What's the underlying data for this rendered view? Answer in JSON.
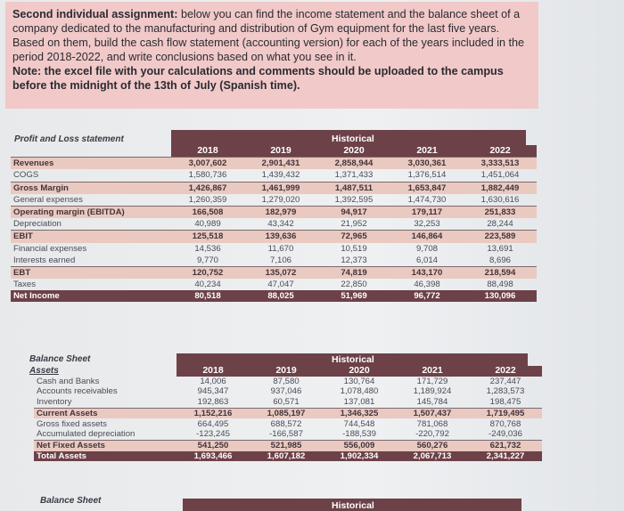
{
  "assignment": {
    "lead": "Second individual assignment:",
    "body": "below you can find the income statement and the balance sheet of a company dedicated to the manufacturing and distribution of Gym equipment for the last five years. Based on them, build the cash flow statement (accounting version) for each of the years included in the period 2018-2022, and write conclusions based on what you see in it.",
    "note": "Note: the excel file with your calculations and comments should be uploaded to the campus before the midnight of the 13th of July (Spanish time)."
  },
  "pl": {
    "title": "Profit and Loss statement",
    "group_header": "Historical",
    "years": [
      "2018",
      "2019",
      "2020",
      "2021",
      "2022"
    ],
    "rows": [
      {
        "label": "Revenues",
        "values": [
          "3,007,602",
          "2,901,431",
          "2,858,944",
          "3,030,361",
          "3,333,513"
        ],
        "style": "hl"
      },
      {
        "label": "COGS",
        "values": [
          "1,580,736",
          "1,439,432",
          "1,371,433",
          "1,376,514",
          "1,451,064"
        ],
        "style": ""
      },
      {
        "label": "Gross Margin",
        "values": [
          "1,426,867",
          "1,461,999",
          "1,487,511",
          "1,653,847",
          "1,882,449"
        ],
        "style": "hl"
      },
      {
        "label": "General expenses",
        "values": [
          "1,260,359",
          "1,279,020",
          "1,392,595",
          "1,474,730",
          "1,630,616"
        ],
        "style": ""
      },
      {
        "label": "Operating margin (EBITDA)",
        "values": [
          "166,508",
          "182,979",
          "94,917",
          "179,117",
          "251,833"
        ],
        "style": "hl"
      },
      {
        "label": "Depreciation",
        "values": [
          "40,989",
          "43,342",
          "21,952",
          "32,253",
          "28,244"
        ],
        "style": ""
      },
      {
        "label": "EBIT",
        "values": [
          "125,518",
          "139,636",
          "72,965",
          "146,864",
          "223,589"
        ],
        "style": "hl"
      },
      {
        "label": "Financial expenses",
        "values": [
          "14,536",
          "11,670",
          "10,519",
          "9,708",
          "13,691"
        ],
        "style": ""
      },
      {
        "label": "Interests earned",
        "values": [
          "9,770",
          "7,106",
          "12,373",
          "6,014",
          "8,696"
        ],
        "style": ""
      },
      {
        "label": "EBT",
        "values": [
          "120,752",
          "135,072",
          "74,819",
          "143,170",
          "218,594"
        ],
        "style": "hl"
      },
      {
        "label": "Taxes",
        "values": [
          "40,234",
          "47,047",
          "22,850",
          "46,398",
          "88,498"
        ],
        "style": ""
      },
      {
        "label": "Net Income",
        "values": [
          "80,518",
          "88,025",
          "51,969",
          "96,772",
          "130,096"
        ],
        "style": "tot"
      }
    ]
  },
  "bs": {
    "title": "Balance Sheet",
    "subtitle": "Assets",
    "group_header": "Historical",
    "years": [
      "2018",
      "2019",
      "2020",
      "2021",
      "2022"
    ],
    "rows": [
      {
        "label": "Cash and Banks",
        "values": [
          "14,006",
          "87,580",
          "130,764",
          "171,729",
          "237,447"
        ],
        "style": ""
      },
      {
        "label": "Accounts receivables",
        "values": [
          "945,347",
          "937,046",
          "1,078,480",
          "1,189,924",
          "1,283,573"
        ],
        "style": ""
      },
      {
        "label": "Inventory",
        "values": [
          "192,863",
          "60,571",
          "137,081",
          "145,784",
          "198,475"
        ],
        "style": ""
      },
      {
        "label": "Current Assets",
        "values": [
          "1,152,216",
          "1,085,197",
          "1,346,325",
          "1,507,437",
          "1,719,495"
        ],
        "style": "hl"
      },
      {
        "label": "Gross fixed assets",
        "values": [
          "664,495",
          "688,572",
          "744,548",
          "781,068",
          "870,768"
        ],
        "style": ""
      },
      {
        "label": "Accumulated depreciation",
        "values": [
          "-123,245",
          "-166,587",
          "-188,539",
          "-220,792",
          "-249,036"
        ],
        "style": ""
      },
      {
        "label": "Net Fixed Assets",
        "values": [
          "541,250",
          "521,985",
          "556,009",
          "560,276",
          "621,732"
        ],
        "style": "hl"
      },
      {
        "label": "Total Assets",
        "values": [
          "1,693,466",
          "1,607,182",
          "1,902,334",
          "2,067,713",
          "2,341,227"
        ],
        "style": "tot"
      }
    ]
  },
  "bs2": {
    "title": "Balance Sheet",
    "group_header": "Historical"
  }
}
